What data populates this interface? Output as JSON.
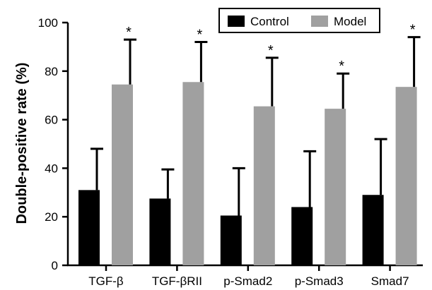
{
  "chart_data": {
    "type": "bar",
    "categories": [
      "TGF-β",
      "TGF-βRII",
      "p-Smad2",
      "p-Smad3",
      "Smad7"
    ],
    "series": [
      {
        "name": "Control",
        "values": [
          31,
          27.5,
          20.5,
          24,
          29
        ],
        "errors": [
          17,
          12,
          19.5,
          23,
          23
        ],
        "color": "#000000"
      },
      {
        "name": "Model",
        "values": [
          74.5,
          75.5,
          65.5,
          64.5,
          73.5
        ],
        "errors": [
          18.5,
          16.5,
          20,
          14.5,
          20.5
        ],
        "color": "#a0a0a0"
      }
    ],
    "significance": [
      "*",
      "*",
      "*",
      "*",
      "*"
    ],
    "ylabel": "Double-positive rate (%)",
    "xlabel": "",
    "ylim": [
      0,
      100
    ],
    "yticks": [
      0,
      20,
      40,
      60,
      80,
      100
    ],
    "legend_position": "top-right",
    "grid": false
  }
}
